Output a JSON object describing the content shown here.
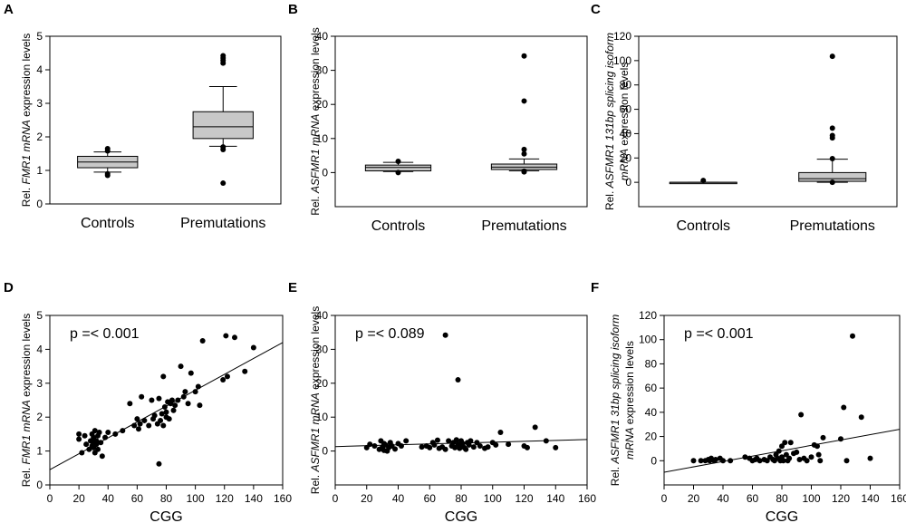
{
  "chart_data": [
    {
      "panel": "A",
      "type": "box",
      "ylabel_parts": [
        {
          "text": "Rel. ",
          "italic": false
        },
        {
          "text": "FMR1 mRNA",
          "italic": true
        },
        {
          "text": " expression levels",
          "italic": false
        }
      ],
      "ylabel2_parts": [],
      "ylim": [
        0,
        5
      ],
      "yticks": [
        0,
        1,
        2,
        3,
        4,
        5
      ],
      "categories": [
        "Controls",
        "Premutations"
      ],
      "boxes": [
        {
          "min": 0.95,
          "q1": 1.08,
          "median": 1.25,
          "q3": 1.42,
          "max": 1.55,
          "outliers": [
            0.85,
            0.9,
            1.58,
            1.65
          ]
        },
        {
          "min": 1.72,
          "q1": 1.95,
          "median": 2.3,
          "q3": 2.75,
          "max": 3.5,
          "outliers": [
            0.62,
            1.62,
            1.7,
            4.2,
            4.28,
            4.35,
            4.42
          ]
        }
      ]
    },
    {
      "panel": "B",
      "type": "box",
      "ylabel_parts": [
        {
          "text": "Rel. ",
          "italic": false
        },
        {
          "text": "ASFMR1 mRNA",
          "italic": true
        },
        {
          "text": " expression levels",
          "italic": false
        }
      ],
      "ylabel2_parts": [],
      "ylim": [
        -10,
        40
      ],
      "yticks": [
        0,
        10,
        20,
        30,
        40
      ],
      "categories": [
        "Controls",
        "Premutations"
      ],
      "boxes": [
        {
          "min": 0.3,
          "q1": 0.5,
          "median": 1.5,
          "q3": 2.2,
          "max": 3.0,
          "outliers": [
            0.0,
            3.3
          ]
        },
        {
          "min": 0.5,
          "q1": 0.9,
          "median": 1.6,
          "q3": 2.5,
          "max": 4.0,
          "outliers": [
            0.2,
            0.4,
            5.5,
            6.8,
            21.0,
            34.2
          ]
        }
      ]
    },
    {
      "panel": "C",
      "type": "box",
      "ylabel_parts": [
        {
          "text": "Rel. ",
          "italic": false
        },
        {
          "text": "ASFMR1 131bp splicing isoform",
          "italic": true
        }
      ],
      "ylabel2_parts": [
        {
          "text": "mRNA",
          "italic": true
        },
        {
          "text": " expression levels",
          "italic": false
        }
      ],
      "ylim": [
        -20,
        120
      ],
      "yticks": [
        0,
        20,
        40,
        60,
        80,
        100,
        120
      ],
      "categories": [
        "Controls",
        "Premutations"
      ],
      "boxes": [
        {
          "min": 0,
          "q1": 0,
          "median": 0,
          "q3": 0,
          "max": 0,
          "outliers": [
            1.5
          ]
        },
        {
          "min": 0,
          "q1": 0.8,
          "median": 3.0,
          "q3": 8.0,
          "max": 19.0,
          "outliers": [
            0.0,
            19.5,
            36.5,
            38.5,
            44.5,
            103.5
          ]
        }
      ]
    },
    {
      "panel": "D",
      "type": "scatter",
      "ylabel_parts": [
        {
          "text": "Rel. ",
          "italic": false
        },
        {
          "text": "FMR1 mRNA",
          "italic": true
        },
        {
          "text": " expression levels",
          "italic": false
        }
      ],
      "ylabel2_parts": [],
      "xlabel": "CGG",
      "xlim": [
        0,
        160
      ],
      "xticks": [
        0,
        20,
        40,
        60,
        80,
        100,
        120,
        140,
        160
      ],
      "ylim": [
        0,
        5
      ],
      "yticks": [
        0,
        1,
        2,
        3,
        4,
        5
      ],
      "annotation": "p =< 0.001",
      "regression": {
        "x0": 0,
        "y0": 0.45,
        "x1": 160,
        "y1": 4.2
      },
      "points": [
        [
          20,
          1.5
        ],
        [
          20,
          1.35
        ],
        [
          22,
          0.95
        ],
        [
          24,
          1.45
        ],
        [
          25,
          1.2
        ],
        [
          27,
          1.05
        ],
        [
          28,
          1.3
        ],
        [
          29,
          1.15
        ],
        [
          29,
          1.5
        ],
        [
          30,
          1.1
        ],
        [
          30,
          1.25
        ],
        [
          30,
          1.4
        ],
        [
          31,
          1.6
        ],
        [
          31,
          0.95
        ],
        [
          32,
          1.2
        ],
        [
          32,
          1.3
        ],
        [
          33,
          1.05
        ],
        [
          33,
          1.45
        ],
        [
          34,
          1.55
        ],
        [
          35,
          1.25
        ],
        [
          36,
          0.85
        ],
        [
          38,
          1.4
        ],
        [
          40,
          1.55
        ],
        [
          45,
          1.5
        ],
        [
          50,
          1.6
        ],
        [
          55,
          2.4
        ],
        [
          58,
          1.75
        ],
        [
          60,
          1.95
        ],
        [
          61,
          1.65
        ],
        [
          62,
          1.8
        ],
        [
          63,
          2.6
        ],
        [
          65,
          1.9
        ],
        [
          68,
          1.75
        ],
        [
          70,
          2.5
        ],
        [
          71,
          1.95
        ],
        [
          72,
          2.05
        ],
        [
          74,
          1.8
        ],
        [
          75,
          2.55
        ],
        [
          75,
          0.62
        ],
        [
          76,
          1.9
        ],
        [
          77,
          2.1
        ],
        [
          78,
          1.75
        ],
        [
          78,
          3.2
        ],
        [
          79,
          2.3
        ],
        [
          80,
          2.0
        ],
        [
          80,
          2.15
        ],
        [
          81,
          2.45
        ],
        [
          82,
          1.95
        ],
        [
          83,
          2.4
        ],
        [
          84,
          2.5
        ],
        [
          85,
          2.2
        ],
        [
          86,
          2.35
        ],
        [
          88,
          2.5
        ],
        [
          90,
          3.5
        ],
        [
          92,
          2.6
        ],
        [
          93,
          2.75
        ],
        [
          95,
          2.4
        ],
        [
          97,
          3.3
        ],
        [
          100,
          2.75
        ],
        [
          102,
          2.9
        ],
        [
          103,
          2.35
        ],
        [
          105,
          4.25
        ],
        [
          119,
          3.1
        ],
        [
          121,
          4.4
        ],
        [
          122,
          3.2
        ],
        [
          127,
          4.35
        ],
        [
          134,
          3.35
        ],
        [
          140,
          4.05
        ]
      ]
    },
    {
      "panel": "E",
      "type": "scatter",
      "ylabel_parts": [
        {
          "text": "Rel. ",
          "italic": false
        },
        {
          "text": "ASFMR1 mRNA",
          "italic": true
        },
        {
          "text": " expression levels",
          "italic": false
        }
      ],
      "ylabel2_parts": [],
      "xlabel": "CGG",
      "xlim": [
        0,
        160
      ],
      "xticks": [
        0,
        20,
        40,
        60,
        80,
        100,
        120,
        140,
        160
      ],
      "ylim": [
        -10,
        40
      ],
      "yticks": [
        0,
        10,
        20,
        30,
        40
      ],
      "annotation": "p =< 0.089",
      "regression": {
        "x0": 0,
        "y0": 1.3,
        "x1": 160,
        "y1": 3.4
      },
      "points": [
        [
          20,
          1.0
        ],
        [
          22,
          2.0
        ],
        [
          25,
          1.5
        ],
        [
          28,
          0.5
        ],
        [
          29,
          3.0
        ],
        [
          30,
          1.2
        ],
        [
          30,
          0.8
        ],
        [
          31,
          2.2
        ],
        [
          31,
          0.2
        ],
        [
          32,
          1.8
        ],
        [
          33,
          0.0
        ],
        [
          34,
          1.0
        ],
        [
          35,
          2.5
        ],
        [
          36,
          1.5
        ],
        [
          38,
          0.6
        ],
        [
          40,
          2.2
        ],
        [
          42,
          1.5
        ],
        [
          45,
          3.0
        ],
        [
          55,
          1.2
        ],
        [
          58,
          1.5
        ],
        [
          60,
          1.0
        ],
        [
          62,
          2.5
        ],
        [
          63,
          1.8
        ],
        [
          65,
          3.2
        ],
        [
          66,
          0.8
        ],
        [
          68,
          1.2
        ],
        [
          70,
          0.5
        ],
        [
          70,
          34.2
        ],
        [
          72,
          3.0
        ],
        [
          74,
          1.5
        ],
        [
          75,
          2.5
        ],
        [
          76,
          1.0
        ],
        [
          77,
          3.3
        ],
        [
          78,
          21.0
        ],
        [
          78,
          2.0
        ],
        [
          79,
          0.8
        ],
        [
          80,
          1.5
        ],
        [
          80,
          3.0
        ],
        [
          81,
          2.2
        ],
        [
          82,
          1.0
        ],
        [
          83,
          0.5
        ],
        [
          84,
          2.5
        ],
        [
          85,
          1.8
        ],
        [
          86,
          3.0
        ],
        [
          88,
          1.2
        ],
        [
          90,
          2.5
        ],
        [
          92,
          1.5
        ],
        [
          95,
          0.8
        ],
        [
          97,
          1.2
        ],
        [
          100,
          2.5
        ],
        [
          102,
          1.8
        ],
        [
          105,
          5.5
        ],
        [
          110,
          2.0
        ],
        [
          120,
          1.5
        ],
        [
          122,
          1.0
        ],
        [
          127,
          7.0
        ],
        [
          134,
          3.0
        ],
        [
          140,
          1.0
        ]
      ]
    },
    {
      "panel": "F",
      "type": "scatter",
      "ylabel_parts": [
        {
          "text": "Rel. ",
          "italic": false
        },
        {
          "text": "ASFMR1 31bp splicing isoform",
          "italic": true
        }
      ],
      "ylabel2_parts": [
        {
          "text": "mRNA",
          "italic": true
        },
        {
          "text": " expression levels",
          "italic": false
        }
      ],
      "xlabel": "CGG",
      "xlim": [
        0,
        160
      ],
      "xticks": [
        0,
        20,
        40,
        60,
        80,
        100,
        120,
        140,
        160
      ],
      "ylim": [
        -20,
        120
      ],
      "yticks": [
        0,
        20,
        40,
        60,
        80,
        100,
        120
      ],
      "annotation": "p =< 0.001",
      "regression": {
        "x0": 0,
        "y0": -9.5,
        "x1": 160,
        "y1": 26.0
      },
      "points": [
        [
          20,
          0
        ],
        [
          25,
          0
        ],
        [
          28,
          0
        ],
        [
          30,
          1
        ],
        [
          31,
          0
        ],
        [
          32,
          2
        ],
        [
          34,
          0
        ],
        [
          35,
          1
        ],
        [
          38,
          2
        ],
        [
          40,
          0
        ],
        [
          45,
          0
        ],
        [
          55,
          3
        ],
        [
          58,
          2
        ],
        [
          60,
          0
        ],
        [
          62,
          1
        ],
        [
          63,
          2
        ],
        [
          65,
          0
        ],
        [
          68,
          1
        ],
        [
          70,
          0
        ],
        [
          72,
          3
        ],
        [
          74,
          1
        ],
        [
          75,
          0
        ],
        [
          76,
          5
        ],
        [
          77,
          2
        ],
        [
          78,
          8
        ],
        [
          79,
          0
        ],
        [
          80,
          3
        ],
        [
          80,
          12
        ],
        [
          81,
          0
        ],
        [
          82,
          15
        ],
        [
          83,
          5
        ],
        [
          84,
          0
        ],
        [
          85,
          2
        ],
        [
          86,
          15
        ],
        [
          88,
          6
        ],
        [
          90,
          7
        ],
        [
          92,
          1
        ],
        [
          93,
          38
        ],
        [
          95,
          2
        ],
        [
          97,
          0
        ],
        [
          100,
          3
        ],
        [
          102,
          13
        ],
        [
          104,
          12
        ],
        [
          105,
          5
        ],
        [
          106,
          0
        ],
        [
          108,
          19
        ],
        [
          120,
          18
        ],
        [
          122,
          44
        ],
        [
          124,
          0
        ],
        [
          128,
          103
        ],
        [
          134,
          36
        ],
        [
          140,
          2
        ]
      ]
    }
  ]
}
